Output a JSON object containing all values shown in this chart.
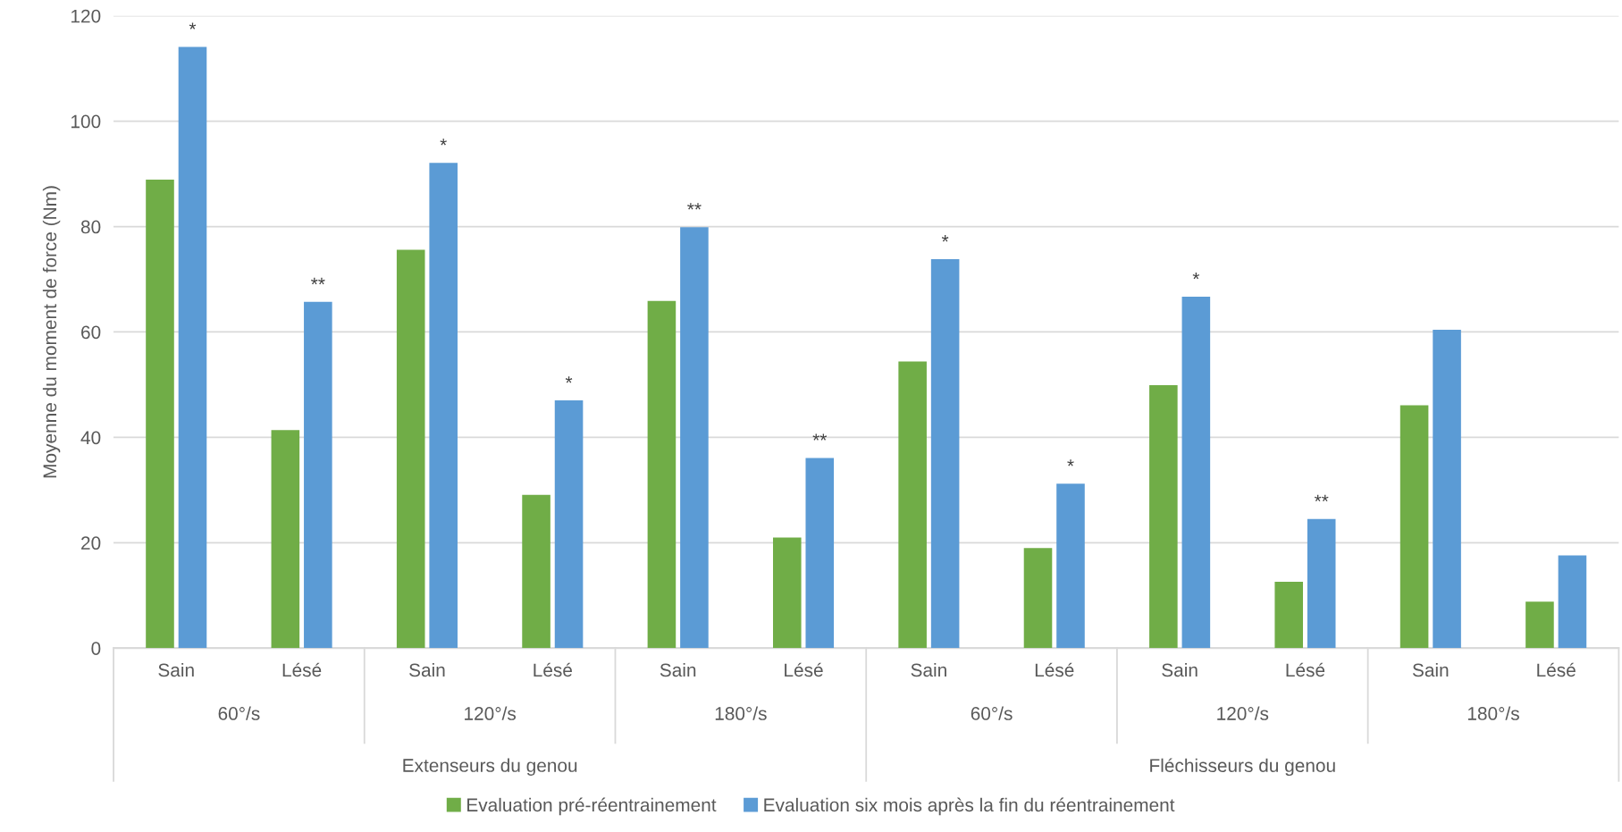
{
  "chart_data": {
    "type": "bar",
    "ylabel": "Moyenne du moment de force (Nm)",
    "categories": [
      "Sain",
      "Lésé",
      "Sain",
      "Lésé",
      "Sain",
      "Lésé",
      "Sain",
      "Lésé",
      "Sain",
      "Lésé",
      "Sain",
      "Lésé"
    ],
    "series": [
      {
        "name": "Evaluation pré-réentrainement",
        "color": "#70ad47",
        "values": [
          88.9,
          41.4,
          75.6,
          29.1,
          65.9,
          21.0,
          54.4,
          19.0,
          49.9,
          12.6,
          46.1,
          8.8
        ]
      },
      {
        "name": "Evaluation six mois après la fin du réentrainement",
        "color": "#5b9bd5",
        "values": [
          114.1,
          65.7,
          92.1,
          47.0,
          79.9,
          36.1,
          73.8,
          31.2,
          66.7,
          24.5,
          60.4,
          17.6
        ],
        "value_labels": [
          "*",
          "**",
          "*",
          "*",
          "**",
          "**",
          "*",
          "*",
          "*",
          "**",
          null,
          null
        ]
      }
    ],
    "annotations": [
      "60°/s",
      "120°/s",
      "180°/s",
      "60°/s",
      "120°/s",
      "180°/s",
      "Extenseurs du genou",
      "Fléchisseurs du genou"
    ],
    "ylim": [
      0,
      120
    ],
    "yticks": [
      0,
      20,
      40,
      60,
      80,
      100,
      120
    ],
    "grid": "y",
    "legend": "bottom"
  }
}
